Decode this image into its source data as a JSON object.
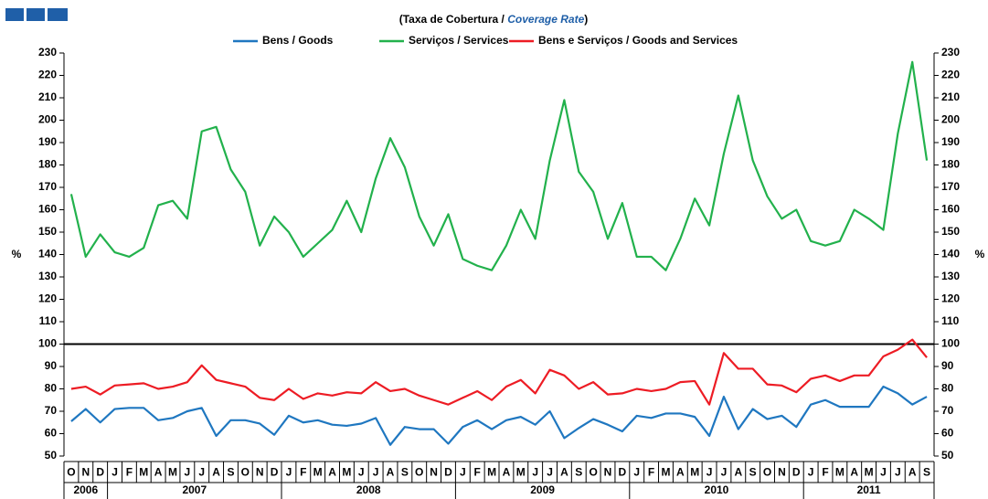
{
  "chart_data": {
    "type": "line",
    "title": [
      "(Taxa de Cobertura  / ",
      "Coverage Rate",
      ")"
    ],
    "ylabel": "%",
    "y2label": "%",
    "categories": [
      "O",
      "N",
      "D",
      "J",
      "F",
      "M",
      "A",
      "M",
      "J",
      "J",
      "A",
      "S",
      "O",
      "N",
      "D",
      "J",
      "F",
      "M",
      "A",
      "M",
      "J",
      "J",
      "A",
      "S",
      "O",
      "N",
      "D",
      "J",
      "F",
      "M",
      "A",
      "M",
      "J",
      "J",
      "A",
      "S",
      "O",
      "N",
      "D",
      "J",
      "F",
      "M",
      "A",
      "M",
      "J",
      "J",
      "A",
      "S",
      "O",
      "N",
      "D",
      "J",
      "F",
      "M",
      "A",
      "M",
      "J",
      "J",
      "A",
      "S"
    ],
    "years": [
      "2006",
      "2007",
      "2008",
      "2009",
      "2010",
      "2011"
    ],
    "series": [
      {
        "name": "Bens / Goods",
        "color": "#1f77c0",
        "values": [
          65.5,
          71,
          65,
          71,
          71.5,
          71.5,
          66,
          67,
          70,
          71.5,
          59,
          66,
          66,
          64.5,
          59.5,
          68,
          65,
          66,
          64,
          63.5,
          64.5,
          67,
          55,
          63,
          62,
          62,
          55.5,
          63,
          66,
          62,
          66,
          67.5,
          64,
          70,
          58,
          62.5,
          66.5,
          64,
          61,
          68,
          67,
          69,
          69,
          67.5,
          59,
          76.5,
          62,
          71,
          66.5,
          68,
          63,
          73,
          75,
          72,
          72,
          72,
          81,
          78,
          73,
          76.5
        ]
      },
      {
        "name": "Serviços / Services",
        "color": "#22b14c",
        "values": [
          167,
          139,
          149,
          141,
          139,
          143,
          162,
          164,
          156,
          195,
          197,
          178,
          168,
          144,
          157,
          150,
          139,
          145,
          151,
          164,
          150,
          174,
          192,
          179,
          157,
          144,
          158,
          138,
          135,
          133,
          144,
          160,
          147,
          182,
          209,
          177,
          168,
          147,
          163,
          139,
          139,
          133,
          147,
          165,
          153,
          185,
          211,
          182,
          166,
          156,
          160,
          146,
          144,
          146,
          160,
          156,
          151,
          194,
          226,
          182
        ]
      },
      {
        "name": "Bens e Serviços / Goods and Services",
        "color": "#ed1c24",
        "values": [
          80,
          81,
          77.5,
          81.5,
          82,
          82.5,
          80,
          81,
          83,
          90.5,
          84,
          82.5,
          81,
          76,
          75,
          80,
          75.5,
          78,
          77,
          78.5,
          78,
          83,
          79,
          80,
          77,
          75,
          73,
          76,
          79,
          75,
          81,
          84,
          78,
          88.5,
          86,
          80,
          83,
          77.5,
          78,
          80,
          79,
          80,
          83,
          83.5,
          73,
          96,
          89,
          89,
          82,
          81.5,
          78.5,
          84.5,
          86,
          83.5,
          86,
          86,
          94.5,
          97.5,
          102,
          94
        ]
      }
    ],
    "reference_line": 100,
    "ylim": [
      50,
      230
    ],
    "yticks": [
      50,
      60,
      70,
      80,
      90,
      100,
      110,
      120,
      130,
      140,
      150,
      160,
      170,
      180,
      190,
      200,
      210,
      220,
      230
    ],
    "y2lim": [
      50,
      230
    ],
    "y2ticks": [
      50,
      60,
      70,
      80,
      90,
      100,
      110,
      120,
      130,
      140,
      150,
      160,
      170,
      180,
      190,
      200,
      210,
      220,
      230
    ]
  }
}
